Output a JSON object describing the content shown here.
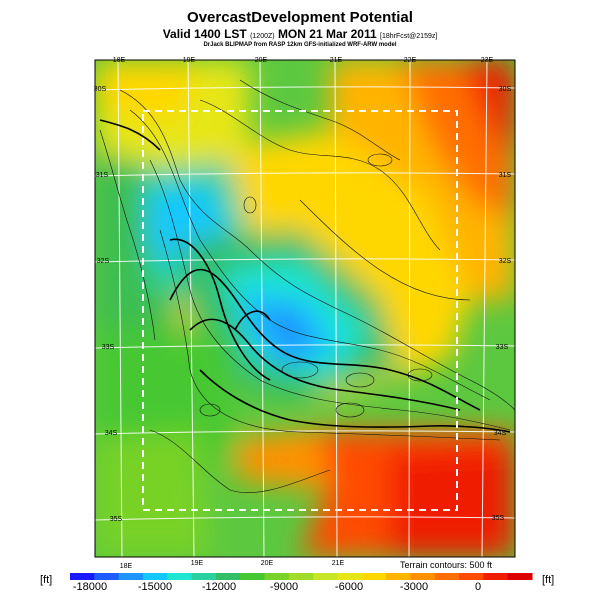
{
  "header": {
    "title": "OvercastDevelopment Potential",
    "valid_prefix": "Valid 1400 LST",
    "valid_small1": "(1200Z)",
    "valid_date": "MON 21 Mar 2011",
    "valid_small2": "[18hrFcst@2159z]",
    "credit": "DrJack BLIPMAP from RASP 12km GFS-initialized WRF-ARW model"
  },
  "map": {
    "lon_labels_top": [
      "18E",
      "19E",
      "20E",
      "21E",
      "22E",
      "23E"
    ],
    "lon_labels_bottom": [
      "18E",
      "19E",
      "20E",
      "21E"
    ],
    "lat_labels_right": [
      "30S",
      "31S",
      "32S",
      "33S",
      "34S",
      "35S"
    ],
    "lat_labels_left": [
      "30S",
      "31S",
      "32S",
      "33S",
      "34S",
      "35S"
    ],
    "terrain_note": "Terrain contours: 500 ft"
  },
  "colorbar": {
    "unit_left": "[ft]",
    "unit_right": "[ft]",
    "ticks": [
      "-18000",
      "-15000",
      "-12000",
      "-9000",
      "-6000",
      "-3000",
      "0"
    ],
    "colors": [
      "#1a1aff",
      "#1e5cff",
      "#1f94ff",
      "#14c8ff",
      "#1ee6d2",
      "#28d2a0",
      "#32be64",
      "#46c832",
      "#78d228",
      "#a0dc28",
      "#c8e628",
      "#e6e614",
      "#ffd700",
      "#ffb400",
      "#ff9100",
      "#ff6e00",
      "#ff4b00",
      "#f01e00",
      "#dc0000"
    ]
  }
}
